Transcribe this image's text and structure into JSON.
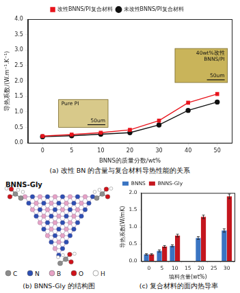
{
  "chart_data": [
    {
      "type": "line",
      "y_label": "导热系数/(W.m⁻¹.K⁻¹)",
      "x_label": "BNNS的质量分数/wt%",
      "categories": [
        0,
        5,
        10,
        20,
        30,
        40,
        50
      ],
      "series": [
        {
          "name": "改性BNNS/PI复合材料",
          "color": "#e8141c",
          "marker": "square",
          "line_style": "solid",
          "values": [
            0.22,
            0.27,
            0.33,
            0.42,
            0.72,
            1.3,
            1.58
          ]
        },
        {
          "name": "未改性BNNS/PI复合材料",
          "color": "#111111",
          "marker": "circle",
          "line_style": "solid",
          "values": [
            0.2,
            0.23,
            0.28,
            0.33,
            0.58,
            1.05,
            1.32
          ]
        }
      ],
      "ylim": [
        0,
        4
      ],
      "yticks": [
        {
          "value": 0,
          "label": "0.0"
        },
        0.5,
        {
          "value": 1,
          "label": "1.0"
        },
        1.5,
        {
          "value": 2,
          "label": "2.0"
        },
        2.5,
        {
          "value": 3,
          "label": "3.0"
        },
        3.5,
        {
          "value": 4,
          "label": "4.0"
        }
      ],
      "grid": false,
      "legend": "top",
      "annotations": [
        [
          "Pure PI",
          "50um"
        ],
        [
          "40wt%改性",
          "BNNS/PI",
          "50um"
        ]
      ]
    },
    {
      "type": "bar",
      "y_label": "导热系数(W/mK)",
      "x_label": "填料含量(wt%)",
      "x": [
        0,
        5,
        10,
        20,
        30
      ],
      "series": [
        {
          "name": "BNNS",
          "color": "#3a74c2",
          "values": [
            0.2,
            0.3,
            0.45,
            0.68,
            0.9
          ],
          "errors": [
            0.02,
            0.03,
            0.03,
            0.04,
            0.05
          ]
        },
        {
          "name": "BNNS-Gly",
          "color": "#c4161e",
          "values": [
            0.2,
            0.43,
            0.75,
            1.3,
            1.9
          ],
          "errors": [
            0.02,
            0.03,
            0.04,
            0.05,
            0.07
          ]
        }
      ],
      "xlim": [
        -3,
        33
      ],
      "xticks": [
        0,
        5,
        10,
        15,
        20,
        25,
        30
      ],
      "ylim": [
        0,
        2
      ],
      "yticks": [
        {
          "value": 0,
          "label": "0.0"
        },
        0.5,
        {
          "value": 1,
          "label": "1.0"
        },
        1.5,
        {
          "value": 2,
          "label": "2.0"
        }
      ],
      "grid": false,
      "legend": "top"
    }
  ],
  "diagram": {
    "title": "BNNS-Gly",
    "atoms": [
      {
        "symbol": "C",
        "color": "#8c8c8c"
      },
      {
        "symbol": "N",
        "color": "#2d4fb3"
      },
      {
        "symbol": "B",
        "color": "#e7a3c6"
      },
      {
        "symbol": "O",
        "color": "#d0121a"
      },
      {
        "symbol": "H",
        "color": "#ffffff"
      }
    ]
  },
  "captions": [
    "(a) 改性 BN 的含量与复合材料导热性能的关系",
    "(b) BNNS-Gly 的结构图",
    "(c) 复合材料的面内热导率"
  ]
}
